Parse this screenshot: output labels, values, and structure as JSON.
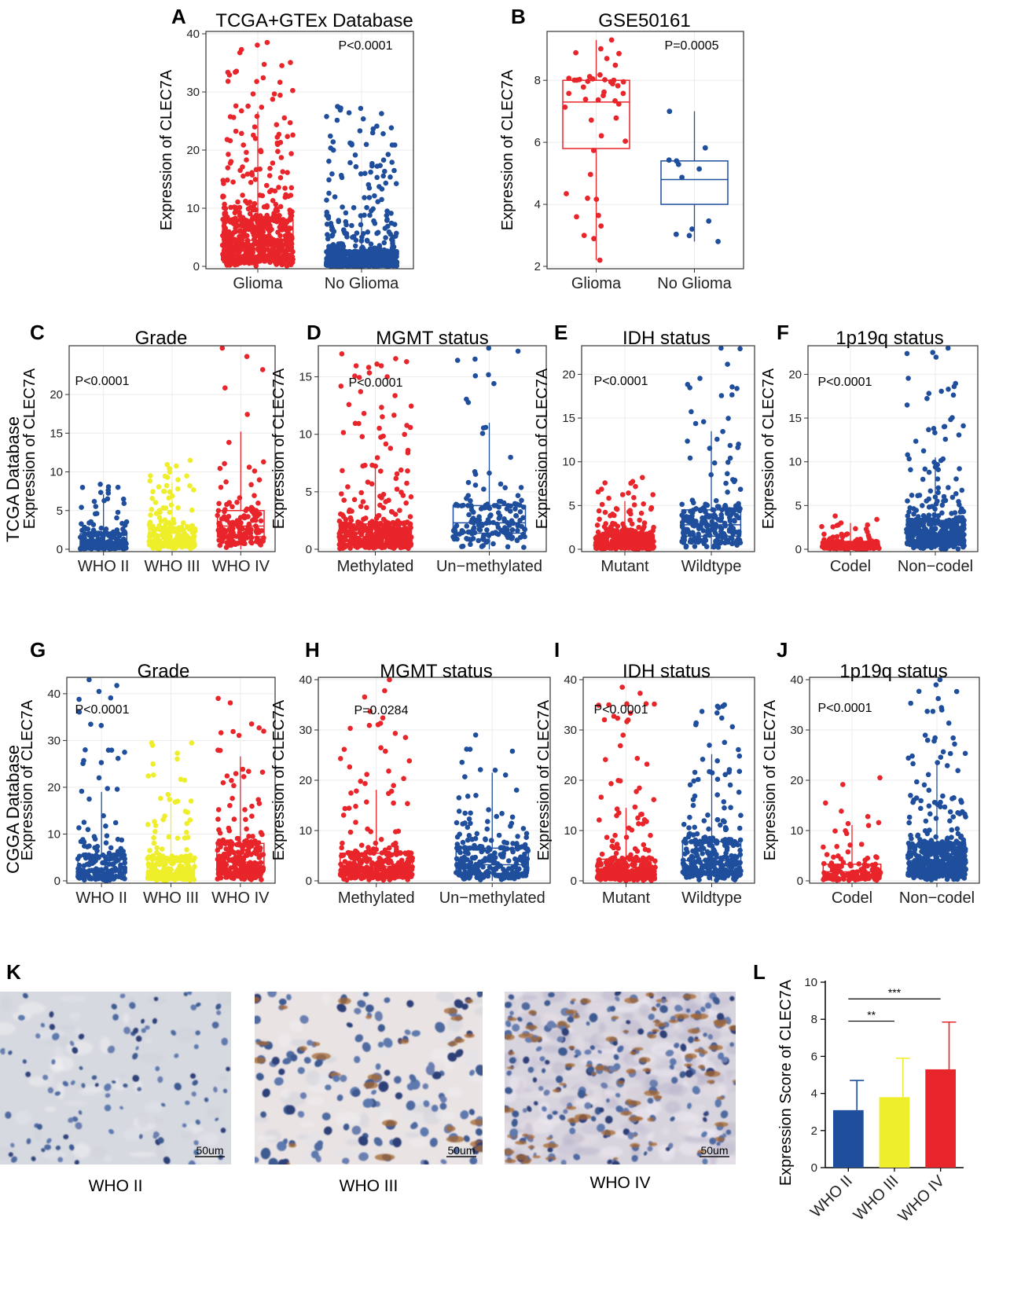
{
  "colors": {
    "red": "#e8252a",
    "blue": "#1f4e9c",
    "yellow": "#eeee2a",
    "grid": "#ebebeb"
  },
  "row_labels": {
    "tcga": "TCGA Database",
    "cgga": "CGGA Database"
  },
  "chart_data": [
    {
      "id": "A",
      "panel_label": "A",
      "type": "scatter",
      "title": "TCGA+GTEx Database",
      "ylabel": "Expression of CLEC7A",
      "ylim": [
        0,
        40
      ],
      "yticks": [
        0,
        10,
        20,
        30,
        40
      ],
      "pvalue": "P<0.0001",
      "categories": [
        "Glioma",
        "No Glioma"
      ],
      "series": [
        {
          "name": "Glioma",
          "color": "red",
          "n": 700,
          "median": 4.5,
          "q1": 1.8,
          "q3": 8.0,
          "max": 38.5
        },
        {
          "name": "No Glioma",
          "color": "blue",
          "n": 900,
          "median": 0.8,
          "q1": 0.3,
          "q3": 2.5,
          "max": 27.5
        }
      ]
    },
    {
      "id": "B",
      "panel_label": "B",
      "type": "scatter",
      "title": "GSE50161",
      "ylabel": "Expression of CLEC7A",
      "ylim": [
        2,
        9.5
      ],
      "yticks": [
        2,
        4,
        6,
        8
      ],
      "pvalue": "P=0.0005",
      "categories": [
        "Glioma",
        "No Glioma"
      ],
      "series": [
        {
          "name": "Glioma",
          "color": "red",
          "n": 45,
          "min": 2.2,
          "median": 7.3,
          "q1": 5.8,
          "q3": 8.0,
          "max": 9.3
        },
        {
          "name": "No Glioma",
          "color": "blue",
          "n": 12,
          "min": 2.8,
          "median": 4.8,
          "q1": 4.0,
          "q3": 5.4,
          "max": 7.0
        }
      ]
    },
    {
      "id": "C",
      "panel_label": "C",
      "type": "scatter",
      "title": "Grade",
      "ylabel": "Expression of CLEC7A",
      "ylim": [
        0,
        26
      ],
      "yticks": [
        0,
        5,
        10,
        15,
        20
      ],
      "pvalue": "P<0.0001",
      "categories": [
        "WHO II",
        "WHO III",
        "WHO IV"
      ],
      "series": [
        {
          "name": "WHO II",
          "color": "blue",
          "n": 230,
          "median": 0.9,
          "q1": 0.3,
          "q3": 2.0,
          "max": 8.4
        },
        {
          "name": "WHO III",
          "color": "yellow",
          "n": 250,
          "median": 1.3,
          "q1": 0.6,
          "q3": 2.6,
          "max": 11.5
        },
        {
          "name": "WHO IV",
          "color": "red",
          "n": 160,
          "median": 3.0,
          "q1": 1.6,
          "q3": 5.0,
          "max": 26.0
        }
      ]
    },
    {
      "id": "D",
      "panel_label": "D",
      "type": "scatter",
      "title": "MGMT status",
      "ylabel": "Expression of CLEC7A",
      "ylim": [
        0,
        17.5
      ],
      "yticks": [
        0,
        5,
        10,
        15
      ],
      "pvalue": "P<0.0001",
      "categories": [
        "Methylated",
        "Un−methylated"
      ],
      "series": [
        {
          "name": "Methylated",
          "color": "red",
          "n": 480,
          "median": 1.1,
          "q1": 0.5,
          "q3": 2.2,
          "max": 17.0
        },
        {
          "name": "Un-methylated",
          "color": "blue",
          "n": 170,
          "median": 2.3,
          "q1": 1.4,
          "q3": 3.8,
          "max": 17.5
        }
      ]
    },
    {
      "id": "E",
      "panel_label": "E",
      "type": "scatter",
      "title": "IDH status",
      "ylabel": "Expression of CLEC7A",
      "ylim": [
        0,
        23
      ],
      "yticks": [
        0,
        5,
        10,
        15,
        20
      ],
      "pvalue": "P<0.0001",
      "categories": [
        "Mutant",
        "Wildtype"
      ],
      "series": [
        {
          "name": "Mutant",
          "color": "red",
          "n": 420,
          "median": 0.8,
          "q1": 0.3,
          "q3": 1.6,
          "max": 8.2
        },
        {
          "name": "Wildtype",
          "color": "blue",
          "n": 240,
          "median": 2.8,
          "q1": 1.5,
          "q3": 4.5,
          "max": 23.0
        }
      ]
    },
    {
      "id": "F",
      "panel_label": "F",
      "type": "scatter",
      "title": "1p19q status",
      "ylabel": "Expression of CLEC7A",
      "ylim": [
        0,
        23
      ],
      "yticks": [
        0,
        5,
        10,
        15,
        20
      ],
      "pvalue": "P<0.0001",
      "categories": [
        "Codel",
        "Non−codel"
      ],
      "series": [
        {
          "name": "Codel",
          "color": "red",
          "n": 170,
          "median": 0.5,
          "q1": 0.2,
          "q3": 0.9,
          "max": 3.8
        },
        {
          "name": "Non-codel",
          "color": "blue",
          "n": 480,
          "median": 1.8,
          "q1": 0.9,
          "q3": 3.3,
          "max": 23.0
        }
      ]
    },
    {
      "id": "G",
      "panel_label": "G",
      "type": "scatter",
      "title": "Grade",
      "ylabel": "Expression of CLEC7A",
      "ylim": [
        0,
        43
      ],
      "yticks": [
        0,
        10,
        20,
        30,
        40
      ],
      "pvalue": "P<0.0001",
      "categories": [
        "WHO II",
        "WHO III",
        "WHO IV"
      ],
      "series": [
        {
          "name": "WHO II",
          "color": "blue",
          "n": 200,
          "median": 2.3,
          "q1": 1.0,
          "q3": 5.5,
          "max": 43.0
        },
        {
          "name": "WHO III",
          "color": "yellow",
          "n": 250,
          "median": 2.2,
          "q1": 0.9,
          "q3": 4.8,
          "max": 29.5
        },
        {
          "name": "WHO IV",
          "color": "red",
          "n": 280,
          "median": 4.0,
          "q1": 1.8,
          "q3": 8.0,
          "max": 39.0
        }
      ]
    },
    {
      "id": "H",
      "panel_label": "H",
      "type": "scatter",
      "title": "MGMT status",
      "ylabel": "Expression of CLEC7A",
      "ylim": [
        0,
        40
      ],
      "yticks": [
        0,
        10,
        20,
        30,
        40
      ],
      "pvalue": "P=0.0284",
      "categories": [
        "Methylated",
        "Un−methylated"
      ],
      "series": [
        {
          "name": "Methylated",
          "color": "red",
          "n": 330,
          "median": 2.8,
          "q1": 1.3,
          "q3": 5.5,
          "max": 40.0
        },
        {
          "name": "Un-methylated",
          "color": "blue",
          "n": 280,
          "median": 3.2,
          "q1": 1.5,
          "q3": 6.5,
          "max": 29.0
        }
      ]
    },
    {
      "id": "I",
      "panel_label": "I",
      "type": "scatter",
      "title": "IDH status",
      "ylabel": "Expression of CLEC7A",
      "ylim": [
        0,
        40
      ],
      "yticks": [
        0,
        10,
        20,
        30,
        40
      ],
      "pvalue": "P<0.0001",
      "categories": [
        "Mutant",
        "Wildtype"
      ],
      "series": [
        {
          "name": "Mutant",
          "color": "red",
          "n": 380,
          "median": 2.0,
          "q1": 0.9,
          "q3": 4.3,
          "max": 38.5
        },
        {
          "name": "Wildtype",
          "color": "blue",
          "n": 320,
          "median": 4.0,
          "q1": 2.0,
          "q3": 7.8,
          "max": 35.0
        }
      ]
    },
    {
      "id": "J",
      "panel_label": "J",
      "type": "scatter",
      "title": "1p19q status",
      "ylabel": "Expression of CLEC7A",
      "ylim": [
        0,
        40
      ],
      "yticks": [
        0,
        10,
        20,
        30,
        40
      ],
      "pvalue": "P<0.0001",
      "categories": [
        "Codel",
        "Non−codel"
      ],
      "series": [
        {
          "name": "Codel",
          "color": "red",
          "n": 130,
          "median": 1.8,
          "q1": 0.7,
          "q3": 3.3,
          "max": 20.5
        },
        {
          "name": "Non-codel",
          "color": "blue",
          "n": 560,
          "median": 4.0,
          "q1": 2.0,
          "q3": 7.3,
          "max": 40.0
        }
      ]
    },
    {
      "id": "L",
      "panel_label": "L",
      "type": "bar",
      "title": "",
      "ylabel": "Expression Score of CLEC7A",
      "ylim": [
        0,
        10
      ],
      "yticks": [
        0,
        2,
        4,
        6,
        8,
        10
      ],
      "categories": [
        "WHO II",
        "WHO III",
        "WHO IV"
      ],
      "values": [
        3.1,
        3.8,
        5.3
      ],
      "errors": [
        1.6,
        2.1,
        2.55
      ],
      "bar_colors": [
        "blue",
        "yellow",
        "red"
      ],
      "significance": [
        {
          "from": 0,
          "to": 1,
          "label": "**",
          "y": 7.9
        },
        {
          "from": 0,
          "to": 2,
          "label": "***",
          "y": 9.1
        }
      ]
    }
  ],
  "histology": {
    "panel_label": "K",
    "scale_bar": "50um",
    "images": [
      {
        "label": "WHO II",
        "density": 0.25
      },
      {
        "label": "WHO III",
        "density": 0.45
      },
      {
        "label": "WHO IV",
        "density": 1.0
      }
    ]
  }
}
